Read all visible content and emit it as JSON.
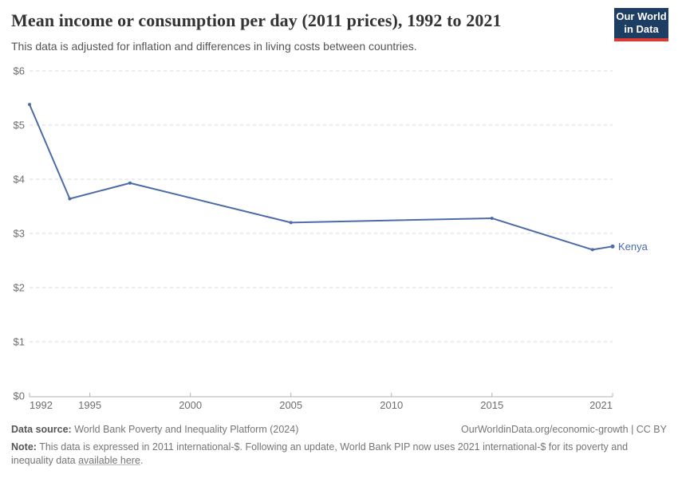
{
  "header": {
    "title": "Mean income or consumption per day (2011 prices), 1992 to 2021",
    "subtitle": "This data is adjusted for inflation and differences in living costs between countries.",
    "logo": {
      "line1": "Our World",
      "line2": "in Data"
    }
  },
  "chart_data": {
    "type": "line",
    "title": "Mean income or consumption per day (2011 prices), 1992 to 2021",
    "series": [
      {
        "name": "Kenya",
        "x": [
          1992,
          1994,
          1997,
          2005,
          2015,
          2020,
          2021
        ],
        "values": [
          5.38,
          3.64,
          3.93,
          3.2,
          3.28,
          2.7,
          2.76
        ],
        "color": "#4c6ba8"
      }
    ],
    "xlabel": "",
    "ylabel": "",
    "xlim": [
      1992,
      2021
    ],
    "ylim": [
      0,
      6
    ],
    "x_ticks": [
      1992,
      1995,
      2000,
      2005,
      2010,
      2015,
      2021
    ],
    "x_tick_labels": [
      "1992",
      "1995",
      "2000",
      "2005",
      "2010",
      "2015",
      "2021"
    ],
    "y_ticks": [
      0,
      1,
      2,
      3,
      4,
      5,
      6
    ],
    "y_tick_labels": [
      "$0",
      "$1",
      "$2",
      "$3",
      "$4",
      "$5",
      "$6"
    ],
    "grid": "horizontal-dashed",
    "legend_position": "end-of-line-label"
  },
  "colors": {
    "line": "#4c6ba8",
    "grid": "#d9d9d9",
    "axis": "#b3b3b3",
    "tick_text": "#6e6e6e",
    "logo_bg": "#1d3d63",
    "logo_accent": "#dc3a34"
  },
  "footer": {
    "datasource_label": "Data source:",
    "datasource_text": " World Bank Poverty and Inequality Platform (2024)",
    "license_text": "OurWorldinData.org/economic-growth | CC BY",
    "note_label": "Note:",
    "note_text": " This data is expressed in 2011 international-$. Following an update, World Bank PIP now uses 2021 international-$ for its poverty and inequality data ",
    "note_link": "available here",
    "note_after_link": "."
  }
}
